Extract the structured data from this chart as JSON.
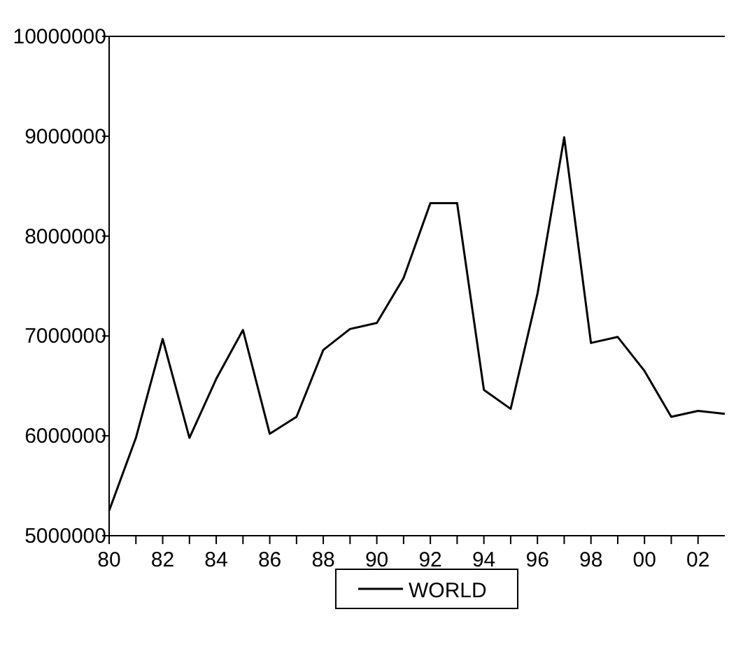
{
  "chart_data": {
    "type": "line",
    "x": [
      1980,
      1981,
      1982,
      1983,
      1984,
      1985,
      1986,
      1987,
      1988,
      1989,
      1990,
      1991,
      1992,
      1993,
      1994,
      1995,
      1996,
      1997,
      1998,
      1999,
      2000,
      2001,
      2002,
      2003
    ],
    "series": [
      {
        "name": "WORLD",
        "color": "#000000",
        "values": [
          5250000,
          5980000,
          6970000,
          5980000,
          6570000,
          7060000,
          6020000,
          6190000,
          6860000,
          7070000,
          7130000,
          7580000,
          8330000,
          8330000,
          6460000,
          6270000,
          7420000,
          8990000,
          6930000,
          6990000,
          6650000,
          6190000,
          6250000,
          6220000
        ]
      }
    ],
    "xlim": [
      1980,
      2003
    ],
    "xticks": [
      {
        "value": 1980,
        "label": "80"
      },
      {
        "value": 1981,
        "label": null
      },
      {
        "value": 1982,
        "label": "82"
      },
      {
        "value": 1983,
        "label": null
      },
      {
        "value": 1984,
        "label": "84"
      },
      {
        "value": 1985,
        "label": null
      },
      {
        "value": 1986,
        "label": "86"
      },
      {
        "value": 1987,
        "label": null
      },
      {
        "value": 1988,
        "label": "88"
      },
      {
        "value": 1989,
        "label": null
      },
      {
        "value": 1990,
        "label": "90"
      },
      {
        "value": 1991,
        "label": null
      },
      {
        "value": 1992,
        "label": "92"
      },
      {
        "value": 1993,
        "label": null
      },
      {
        "value": 1994,
        "label": "94"
      },
      {
        "value": 1995,
        "label": null
      },
      {
        "value": 1996,
        "label": "96"
      },
      {
        "value": 1997,
        "label": null
      },
      {
        "value": 1998,
        "label": "98"
      },
      {
        "value": 1999,
        "label": null
      },
      {
        "value": 2000,
        "label": "00"
      },
      {
        "value": 2001,
        "label": null
      },
      {
        "value": 2002,
        "label": "02"
      }
    ],
    "ylim": [
      5000000,
      10000000
    ],
    "yticks": [
      5000000,
      6000000,
      7000000,
      8000000,
      9000000,
      10000000
    ],
    "legend": "bottom",
    "grid": false,
    "line_style": "solid"
  }
}
